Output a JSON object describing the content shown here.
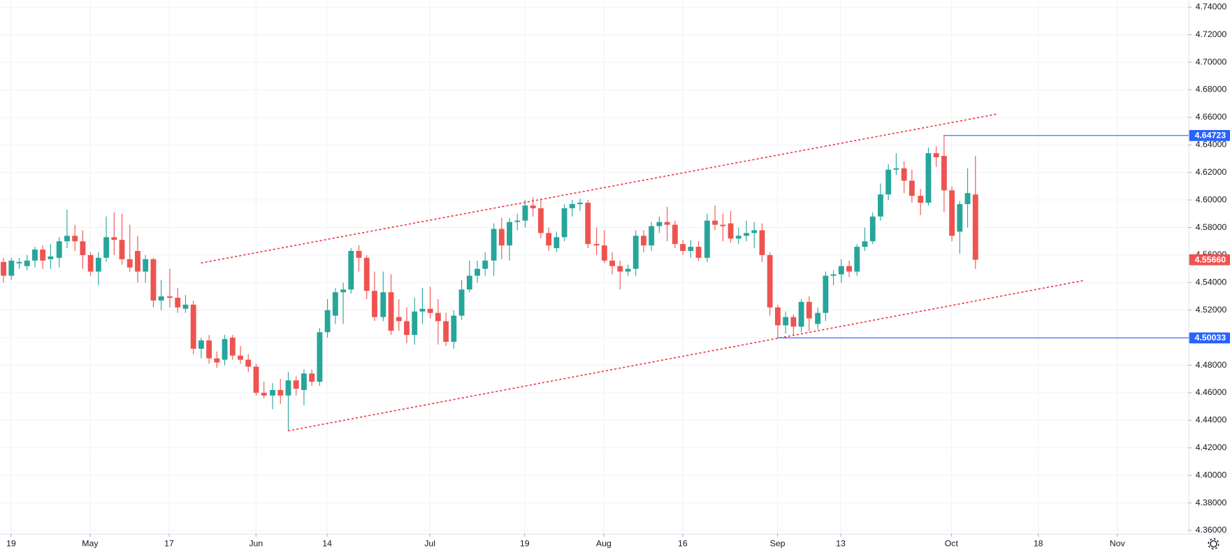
{
  "chart_data": {
    "type": "candlestick",
    "up_color": "#26a69a",
    "down_color": "#ef5350",
    "grid": true,
    "open": [
      4.555,
      4.545,
      4.554,
      4.552,
      4.556,
      4.564,
      4.557,
      4.558,
      4.57,
      4.574,
      4.57,
      4.56,
      4.548,
      4.558,
      4.573,
      4.571,
      4.557,
      4.563,
      4.548,
      4.557,
      4.527,
      4.53,
      4.529,
      4.521,
      4.524,
      4.492,
      4.498,
      4.485,
      4.484,
      4.5,
      4.487,
      4.484,
      4.479,
      4.46,
      4.458,
      4.462,
      4.458,
      4.469,
      4.462,
      4.474,
      4.468,
      4.504,
      4.516,
      4.533,
      4.535,
      4.563,
      4.558,
      4.534,
      4.515,
      4.533,
      4.515,
      4.512,
      4.502,
      4.519,
      4.521,
      4.518,
      4.512,
      4.497,
      4.516,
      4.535,
      4.545,
      4.55,
      4.556,
      4.579,
      4.567,
      4.584,
      4.585,
      4.596,
      4.594,
      4.576,
      4.565,
      4.573,
      4.594,
      4.597,
      4.598,
      4.568,
      4.567,
      4.556,
      4.552,
      4.548,
      4.55,
      4.574,
      4.567,
      4.581,
      4.584,
      4.582,
      4.568,
      4.563,
      4.566,
      4.558,
      4.585,
      4.582,
      4.583,
      4.572,
      4.574,
      4.576,
      4.578,
      4.56,
      4.522,
      4.509,
      4.515,
      4.508,
      4.526,
      4.51,
      4.518,
      4.545,
      4.546,
      4.552,
      4.548,
      4.566,
      4.57,
      4.588,
      4.604,
      4.622,
      4.623,
      4.614,
      4.603,
      4.598,
      4.634,
      4.632,
      4.607,
      4.577,
      4.597,
      4.604
    ],
    "high": [
      4.558,
      4.558,
      4.558,
      4.56,
      4.566,
      4.567,
      4.568,
      4.573,
      4.593,
      4.582,
      4.578,
      4.562,
      4.562,
      4.588,
      4.591,
      4.59,
      4.582,
      4.574,
      4.56,
      4.558,
      4.542,
      4.55,
      4.536,
      4.531,
      4.527,
      4.5,
      4.502,
      4.49,
      4.502,
      4.502,
      4.494,
      4.488,
      4.481,
      4.468,
      4.467,
      4.47,
      4.475,
      4.472,
      4.477,
      4.477,
      4.507,
      4.528,
      4.536,
      4.54,
      4.565,
      4.567,
      4.56,
      4.548,
      4.548,
      4.546,
      4.528,
      4.522,
      4.529,
      4.536,
      4.537,
      4.528,
      4.518,
      4.52,
      4.542,
      4.556,
      4.556,
      4.562,
      4.583,
      4.587,
      4.587,
      4.59,
      4.6,
      4.602,
      4.6,
      4.58,
      4.577,
      4.597,
      4.6,
      4.601,
      4.6,
      4.58,
      4.578,
      4.562,
      4.556,
      4.553,
      4.578,
      4.578,
      4.584,
      4.588,
      4.595,
      4.585,
      4.571,
      4.571,
      4.57,
      4.59,
      4.596,
      4.59,
      4.592,
      4.58,
      4.585,
      4.584,
      4.583,
      4.562,
      4.524,
      4.519,
      4.517,
      4.528,
      4.53,
      4.522,
      4.548,
      4.549,
      4.557,
      4.556,
      4.568,
      4.58,
      4.591,
      4.612,
      4.626,
      4.634,
      4.628,
      4.622,
      4.608,
      4.638,
      4.639,
      4.647,
      4.61,
      4.599,
      4.623,
      4.632
    ],
    "low": [
      4.54,
      4.542,
      4.55,
      4.549,
      4.551,
      4.55,
      4.55,
      4.551,
      4.565,
      4.563,
      4.55,
      4.545,
      4.538,
      4.555,
      4.56,
      4.553,
      4.548,
      4.54,
      4.54,
      4.522,
      4.52,
      4.522,
      4.518,
      4.518,
      4.488,
      4.485,
      4.481,
      4.478,
      4.48,
      4.484,
      4.481,
      4.475,
      4.458,
      4.456,
      4.448,
      4.452,
      4.433,
      4.458,
      4.451,
      4.465,
      4.465,
      4.5,
      4.51,
      4.51,
      4.532,
      4.548,
      4.528,
      4.512,
      4.512,
      4.502,
      4.505,
      4.496,
      4.495,
      4.51,
      4.514,
      4.495,
      4.494,
      4.492,
      4.513,
      4.533,
      4.54,
      4.545,
      4.545,
      4.557,
      4.556,
      4.578,
      4.58,
      4.588,
      4.572,
      4.563,
      4.562,
      4.57,
      4.588,
      4.592,
      4.565,
      4.56,
      4.554,
      4.546,
      4.535,
      4.545,
      4.545,
      4.562,
      4.563,
      4.576,
      4.57,
      4.565,
      4.56,
      4.558,
      4.556,
      4.555,
      4.578,
      4.57,
      4.569,
      4.568,
      4.57,
      4.565,
      4.555,
      4.516,
      4.5,
      4.503,
      4.502,
      4.504,
      4.505,
      4.506,
      4.512,
      4.538,
      4.54,
      4.544,
      4.545,
      4.563,
      4.568,
      4.585,
      4.6,
      4.618,
      4.605,
      4.598,
      4.589,
      4.596,
      4.624,
      4.591,
      4.57,
      4.561,
      4.58,
      4.55
    ],
    "close": [
      4.545,
      4.556,
      4.555,
      4.556,
      4.564,
      4.556,
      4.559,
      4.57,
      4.574,
      4.57,
      4.56,
      4.548,
      4.558,
      4.573,
      4.571,
      4.557,
      4.551,
      4.548,
      4.557,
      4.527,
      4.53,
      4.529,
      4.522,
      4.524,
      4.492,
      4.498,
      4.485,
      4.482,
      4.499,
      4.487,
      4.484,
      4.479,
      4.46,
      4.458,
      4.462,
      4.458,
      4.469,
      4.463,
      4.474,
      4.468,
      4.504,
      4.52,
      4.533,
      4.535,
      4.563,
      4.558,
      4.534,
      4.515,
      4.533,
      4.505,
      4.512,
      4.502,
      4.519,
      4.521,
      4.518,
      4.512,
      4.497,
      4.516,
      4.535,
      4.545,
      4.55,
      4.556,
      4.579,
      4.567,
      4.584,
      4.585,
      4.596,
      4.594,
      4.576,
      4.567,
      4.573,
      4.594,
      4.597,
      4.598,
      4.568,
      4.567,
      4.556,
      4.552,
      4.548,
      4.55,
      4.574,
      4.567,
      4.581,
      4.584,
      4.582,
      4.568,
      4.563,
      4.566,
      4.558,
      4.585,
      4.582,
      4.581,
      4.572,
      4.574,
      4.576,
      4.578,
      4.56,
      4.522,
      4.509,
      4.515,
      4.508,
      4.526,
      4.514,
      4.518,
      4.545,
      4.546,
      4.552,
      4.548,
      4.566,
      4.57,
      4.588,
      4.604,
      4.622,
      4.623,
      4.614,
      4.603,
      4.598,
      4.634,
      4.631,
      4.607,
      4.574,
      4.597,
      4.605,
      4.5566
    ],
    "xlim": [
      -0.4,
      150
    ],
    "xticks": [
      {
        "value": 1,
        "label": "19"
      },
      {
        "value": 11,
        "label": "May"
      },
      {
        "value": 21,
        "label": "17"
      },
      {
        "value": 32,
        "label": "Jun"
      },
      {
        "value": 41,
        "label": "14"
      },
      {
        "value": 54,
        "label": "Jul"
      },
      {
        "value": 66,
        "label": "19"
      },
      {
        "value": 76,
        "label": "Aug"
      },
      {
        "value": 86,
        "label": "16"
      },
      {
        "value": 98,
        "label": "Sep"
      },
      {
        "value": 106,
        "label": "13"
      },
      {
        "value": 120,
        "label": "Oct"
      },
      {
        "value": 131,
        "label": "18"
      },
      {
        "value": 141,
        "label": "Nov"
      }
    ],
    "ylim": [
      4.3577,
      4.7451
    ],
    "yticks": [
      {
        "value": 4.36,
        "label": "4.36000"
      },
      {
        "value": 4.38,
        "label": "4.38000"
      },
      {
        "value": 4.4,
        "label": "4.40000"
      },
      {
        "value": 4.42,
        "label": "4.42000"
      },
      {
        "value": 4.44,
        "label": "4.44000"
      },
      {
        "value": 4.46,
        "label": "4.46000"
      },
      {
        "value": 4.48,
        "label": "4.48000"
      },
      {
        "value": 4.5,
        "label": "4.50000"
      },
      {
        "value": 4.52,
        "label": "4.52000"
      },
      {
        "value": 4.54,
        "label": "4.54000"
      },
      {
        "value": 4.56,
        "label": "4.56000"
      },
      {
        "value": 4.58,
        "label": "4.58000"
      },
      {
        "value": 4.6,
        "label": "4.60000"
      },
      {
        "value": 4.62,
        "label": "4.62000"
      },
      {
        "value": 4.64,
        "label": "4.64000"
      },
      {
        "value": 4.66,
        "label": "4.66000"
      },
      {
        "value": 4.68,
        "label": "4.68000"
      },
      {
        "value": 4.7,
        "label": "4.70000"
      },
      {
        "value": 4.72,
        "label": "4.72000"
      },
      {
        "value": 4.74,
        "label": "4.74000"
      }
    ],
    "price_lines": [
      {
        "value": 4.64723,
        "start": 119,
        "color": "#2962ff"
      },
      {
        "value": 4.50033,
        "start": 98,
        "color": "#2962ff"
      }
    ],
    "last_price": {
      "value": 4.5566,
      "label": "4.55660"
    },
    "trendlines": [
      {
        "x": [
          25.1,
          125.9
        ],
        "y": [
          4.5543,
          4.6625
        ],
        "color": "#f23645"
      },
      {
        "x": [
          36.1,
          136.9
        ],
        "y": [
          4.4324,
          4.5417
        ],
        "color": "#f23645"
      }
    ]
  }
}
